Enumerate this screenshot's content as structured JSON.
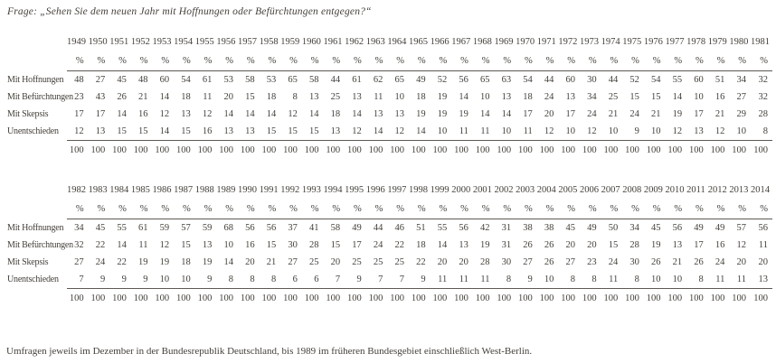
{
  "page": {
    "title": "Frage: „Sehen Sie dem neuen Jahr mit Hoffnungen oder Befürchtungen entgegen?“",
    "footnote": "Umfragen jeweils im Dezember in der Bundesrepublik Deutschland, bis 1989 im früheren Bundesgebiet einschließlich West-Berlin."
  },
  "unit": "%",
  "colors": {
    "text": "#45403a",
    "rule": "#5e5953",
    "background": "#ffffff"
  },
  "tables": [
    {
      "years": [
        "1949",
        "1950",
        "1951",
        "1952",
        "1953",
        "1954",
        "1955",
        "1956",
        "1957",
        "1958",
        "1959",
        "1960",
        "1961",
        "1962",
        "1963",
        "1964",
        "1965",
        "1966",
        "1967",
        "1968",
        "1969",
        "1970",
        "1971",
        "1972",
        "1973",
        "1974",
        "1975",
        "1976",
        "1977",
        "1978",
        "1979",
        "1980",
        "1981"
      ],
      "rows": [
        {
          "label": "Mit Hoffnungen",
          "values": [
            48,
            27,
            45,
            48,
            60,
            54,
            61,
            53,
            58,
            53,
            65,
            58,
            44,
            61,
            62,
            65,
            49,
            52,
            56,
            65,
            63,
            54,
            44,
            60,
            30,
            44,
            52,
            54,
            55,
            60,
            51,
            34,
            32
          ]
        },
        {
          "label": "Mit Befürchtungen",
          "values": [
            23,
            43,
            26,
            21,
            14,
            18,
            11,
            20,
            15,
            18,
            8,
            13,
            25,
            13,
            11,
            10,
            18,
            19,
            14,
            10,
            13,
            18,
            24,
            13,
            34,
            25,
            15,
            15,
            14,
            10,
            16,
            27,
            32
          ]
        },
        {
          "label": "Mit Skepsis",
          "values": [
            17,
            17,
            14,
            16,
            12,
            13,
            12,
            14,
            14,
            14,
            12,
            14,
            18,
            14,
            13,
            13,
            19,
            19,
            19,
            14,
            14,
            17,
            20,
            17,
            24,
            21,
            24,
            21,
            19,
            17,
            21,
            29,
            28
          ]
        },
        {
          "label": "Unentschieden",
          "values": [
            12,
            13,
            15,
            15,
            14,
            15,
            16,
            13,
            13,
            15,
            15,
            15,
            13,
            12,
            14,
            12,
            14,
            10,
            11,
            11,
            10,
            11,
            12,
            10,
            12,
            10,
            9,
            10,
            12,
            13,
            12,
            10,
            8
          ]
        }
      ],
      "totals": [
        100,
        100,
        100,
        100,
        100,
        100,
        100,
        100,
        100,
        100,
        100,
        100,
        100,
        100,
        100,
        100,
        100,
        100,
        100,
        100,
        100,
        100,
        100,
        100,
        100,
        100,
        100,
        100,
        100,
        100,
        100,
        100,
        100
      ]
    },
    {
      "years": [
        "1982",
        "1983",
        "1984",
        "1985",
        "1986",
        "1987",
        "1988",
        "1989",
        "1990",
        "1991",
        "1992",
        "1993",
        "1994",
        "1995",
        "1996",
        "1997",
        "1998",
        "1999",
        "2000",
        "2001",
        "2002",
        "2003",
        "2004",
        "2005",
        "2006",
        "2007",
        "2008",
        "2009",
        "2010",
        "2011",
        "2012",
        "2013",
        "2014"
      ],
      "rows": [
        {
          "label": "Mit Hoffnungen",
          "values": [
            34,
            45,
            55,
            61,
            59,
            57,
            59,
            68,
            56,
            56,
            37,
            41,
            58,
            49,
            44,
            46,
            51,
            55,
            56,
            42,
            31,
            38,
            38,
            45,
            49,
            50,
            34,
            45,
            56,
            49,
            49,
            57,
            56
          ]
        },
        {
          "label": "Mit Befürchtungen",
          "values": [
            32,
            22,
            14,
            11,
            12,
            15,
            13,
            10,
            16,
            15,
            30,
            28,
            15,
            17,
            24,
            22,
            18,
            14,
            13,
            19,
            31,
            26,
            26,
            20,
            20,
            15,
            28,
            19,
            13,
            17,
            16,
            12,
            11
          ]
        },
        {
          "label": "Mit Skepsis",
          "values": [
            27,
            24,
            22,
            19,
            19,
            18,
            19,
            14,
            20,
            21,
            27,
            25,
            20,
            25,
            25,
            25,
            22,
            20,
            20,
            28,
            30,
            27,
            26,
            27,
            23,
            24,
            30,
            26,
            21,
            26,
            24,
            20,
            20
          ]
        },
        {
          "label": "Unentschieden",
          "values": [
            7,
            9,
            9,
            9,
            10,
            10,
            9,
            8,
            8,
            8,
            6,
            6,
            7,
            9,
            7,
            7,
            9,
            11,
            11,
            11,
            8,
            9,
            10,
            8,
            8,
            11,
            8,
            10,
            10,
            8,
            11,
            11,
            13
          ]
        }
      ],
      "totals": [
        100,
        100,
        100,
        100,
        100,
        100,
        100,
        100,
        100,
        100,
        100,
        100,
        100,
        100,
        100,
        100,
        100,
        100,
        100,
        100,
        100,
        100,
        100,
        100,
        100,
        100,
        100,
        100,
        100,
        100,
        100,
        100,
        100
      ]
    }
  ]
}
